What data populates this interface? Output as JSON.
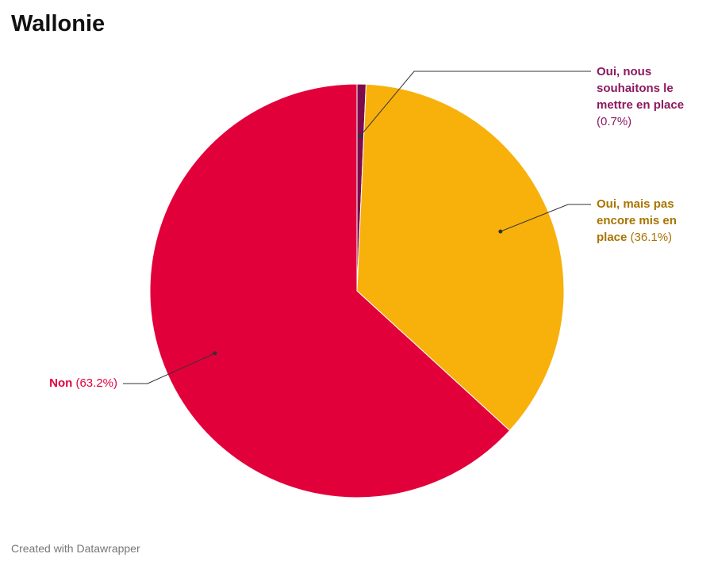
{
  "chart_data": {
    "type": "pie",
    "title": "Wallonie",
    "footer": "Created with Datawrapper",
    "categories": [
      "Oui, nous souhaitons le mettre en place",
      "Oui, mais pas encore mis en place",
      "Non"
    ],
    "values": [
      0.7,
      36.1,
      63.2
    ],
    "value_labels": [
      "(0.7%)",
      "(36.1%)",
      "(63.2%)"
    ],
    "colors": [
      "#7d0a4d",
      "#f8b00b",
      "#e2003a"
    ],
    "label_colors": [
      "#8b1a5f",
      "#a87400",
      "#e2003a"
    ]
  }
}
